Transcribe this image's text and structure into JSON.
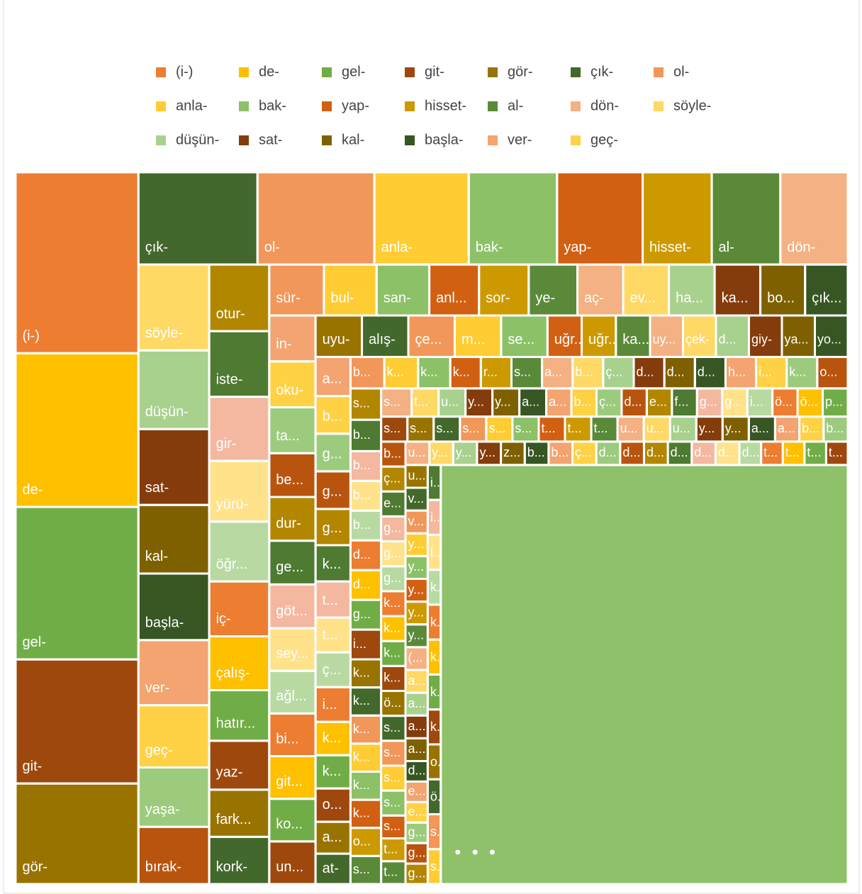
{
  "chart_data": {
    "type": "treemap",
    "legend": [
      "(i-)",
      "de-",
      "gel-",
      "git-",
      "gör-",
      "çık-",
      "ol-",
      "anla-",
      "bak-",
      "yap-",
      "hisset-",
      "al-",
      "dön-",
      "söyle-",
      "düşün-",
      "sat-",
      "kal-",
      "başla-",
      "ver-",
      "geç-"
    ],
    "palette": [
      "#ED7D31",
      "#FFC000",
      "#70AD47",
      "#9E480E",
      "#997300",
      "#43682B",
      "#F1975A",
      "#FFCD33",
      "#8CC168",
      "#D26012",
      "#CC9A00",
      "#5A8A39",
      "#F4B183",
      "#FFD966",
      "#A9D18E",
      "#843C0C",
      "#7F6000",
      "#375623",
      "#F3A470",
      "#FFD145",
      "#9DCB7E",
      "#B9540F",
      "#B38600",
      "#4E7A32",
      "#F4B8A0",
      "#FFE28A",
      "#B8DAA2"
    ],
    "labels": [
      "(i-)",
      "de-",
      "gel-",
      "git-",
      "gör-",
      "çık-",
      "ol-",
      "anla-",
      "bak-",
      "yap-",
      "hisset-",
      "al-",
      "dön-",
      "söyle-",
      "düşün-",
      "sat-",
      "kal-",
      "başla-",
      "ver-",
      "geç-",
      "yaşa-",
      "bırak-",
      "otur-",
      "iste-",
      "gir-",
      "yürü-",
      "öğr...",
      "iç-",
      "çalış-",
      "hatır...",
      "yaz-",
      "fark...",
      "kork-",
      "sür-",
      "bul-",
      "san-",
      "anl...",
      "sor-",
      "ye-",
      "aç-",
      "ev...",
      "ha...",
      "ka...",
      "bo...",
      "çık...",
      "in-",
      "oku-",
      "ta...",
      "be...",
      "dur-",
      "ge...",
      "göt...",
      "sey...",
      "ağl...",
      "bi...",
      "git...",
      "ko...",
      "un...",
      "uyu-",
      "alış-",
      "çe...",
      "m...",
      "se...",
      "uğr...",
      "uğr...",
      "ka...",
      "uy...",
      "çek-",
      "d...",
      "giy-",
      "ya...",
      "yo...",
      "a...",
      "b...",
      "g...",
      "g...",
      "g...",
      "k...",
      "t...",
      "t...",
      "ç...",
      "i...",
      "k...",
      "k...",
      "o...",
      "a...",
      "at-",
      "b...",
      "k...",
      "k...",
      "k...",
      "r...",
      "s...",
      "a...",
      "b...",
      "ç...",
      "d...",
      "d...",
      "d...",
      "h...",
      "i...",
      "k...",
      "o...",
      "s...",
      "b...",
      "b...",
      "b...",
      "b...",
      "d...",
      "d...",
      "g...",
      "i...",
      "k...",
      "k...",
      "k...",
      "k...",
      "k...",
      "k...",
      "o...",
      "s...",
      "s...",
      "t...",
      "u...",
      "y...",
      "y...",
      "a...",
      "a...",
      "b...",
      "ç...",
      "d...",
      "e...",
      "f...",
      "g...",
      "g...",
      "i...",
      "ö...",
      "ö...",
      "p...",
      "s...",
      "s...",
      "s...",
      "s...",
      "s...",
      "s...",
      "t...",
      "t...",
      "t...",
      "u...",
      "u...",
      "u...",
      "y...",
      "y...",
      "a...",
      "a...",
      "b...",
      "b...",
      "b...",
      "ç...",
      "e...",
      "g...",
      "g...",
      "g...",
      "k...",
      "k...",
      "k...",
      "k...",
      "ö...",
      "s...",
      "s...",
      "s...",
      "s...",
      "s...",
      "t...",
      "t...",
      "u...",
      "y...",
      "y...",
      "y...",
      "z...",
      "b...",
      "b...",
      "ç...",
      "d...",
      "d...",
      "d...",
      "d...",
      "d...",
      "d...",
      "d...",
      "t...",
      "t...",
      "t...",
      "t...",
      "u...",
      "v...",
      "v...",
      "y...",
      "y...",
      "y...",
      "y...",
      "y...",
      "(...",
      "a...",
      "a...",
      "a...",
      "a...",
      "d...",
      "e...",
      "e...",
      "g...",
      "g...",
      "g...",
      "i...",
      "i...",
      "i...",
      "k...",
      "k...",
      "k...",
      "k...",
      "k...",
      "o...",
      "ö...",
      "s...",
      "s..."
    ],
    "values": [
      439,
      373,
      370,
      301,
      244,
      217,
      213,
      172,
      161,
      156,
      126,
      125,
      123,
      120,
      110,
      106,
      96,
      93,
      91,
      87,
      83,
      80,
      79,
      78,
      76,
      72,
      71,
      65,
      64,
      60,
      58,
      56,
      56,
      55,
      53,
      53,
      50,
      50,
      49,
      46,
      46,
      46,
      46,
      45,
      43,
      42,
      42,
      42,
      40,
      40,
      40,
      40,
      39,
      39,
      39,
      39,
      39,
      39,
      38,
      38,
      38,
      38,
      38,
      28,
      28,
      28,
      27,
      27,
      27,
      27,
      27,
      27,
      27,
      26,
      26,
      26,
      25,
      25,
      25,
      24,
      24,
      24,
      23,
      23,
      23,
      22,
      21,
      21,
      21,
      20,
      19,
      19,
      19,
      19,
      19,
      19,
      19,
      19,
      19,
      19,
      19,
      19,
      19,
      19,
      19,
      18,
      18,
      18,
      18,
      18,
      18,
      18,
      17,
      17,
      17,
      17,
      17,
      17,
      17,
      17,
      17,
      15,
      15,
      15,
      15,
      15,
      14,
      14,
      14,
      14,
      14,
      14,
      14,
      14,
      14,
      14,
      14,
      14,
      13,
      13,
      13,
      13,
      13,
      13,
      13,
      13,
      13,
      13,
      13,
      13,
      13,
      13,
      13,
      12,
      12,
      12,
      12,
      12,
      12,
      12,
      12,
      12,
      12,
      12,
      12,
      12,
      12,
      12,
      12,
      12,
      12,
      11,
      11,
      11,
      11,
      11,
      11,
      11,
      11,
      11,
      11,
      11,
      11,
      11,
      11,
      11,
      11,
      11,
      10,
      10,
      10,
      10,
      10,
      10,
      10,
      10,
      10,
      10,
      10,
      10,
      10,
      10,
      10,
      10,
      10,
      10,
      9,
      9,
      9,
      9,
      9,
      9,
      9,
      9,
      9,
      9,
      9,
      9,
      9,
      9,
      9,
      9,
      9,
      9
    ],
    "other": {
      "label": "• • •",
      "value": 3370,
      "color": "#8EC16A"
    }
  }
}
